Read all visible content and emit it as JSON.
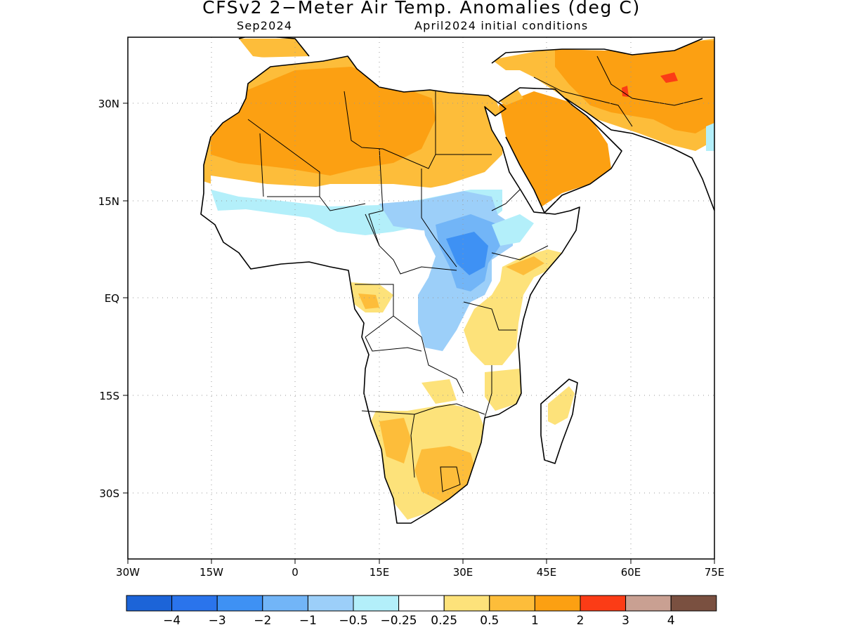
{
  "header": {
    "title": "CFSv2 2-Meter Air Temp. Anomalies (deg C)",
    "target_month": "Sep2024",
    "initial_conditions": "April2024 initial conditions"
  },
  "axes": {
    "lat_labels": [
      "30N",
      "15N",
      "EQ",
      "15S",
      "30S"
    ],
    "lon_labels": [
      "30W",
      "15W",
      "0",
      "15E",
      "30E",
      "45E",
      "60E",
      "75E"
    ]
  },
  "legend": {
    "colors": [
      "#1c64d8",
      "#2a74ec",
      "#3e91f4",
      "#72b5f7",
      "#9ccff9",
      "#b3effa",
      "#ffffff",
      "#fde27a",
      "#fdbd3a",
      "#fca012",
      "#fb3c16",
      "#c9a092",
      "#7a5040"
    ],
    "labels": [
      "-4",
      "-3",
      "-2",
      "-1",
      "-0.5",
      "-0.25",
      "0.25",
      "0.5",
      "1",
      "2",
      "3",
      "4"
    ]
  },
  "map_extent": {
    "lon": [
      -30,
      75
    ],
    "lat": [
      -39,
      40
    ]
  }
}
